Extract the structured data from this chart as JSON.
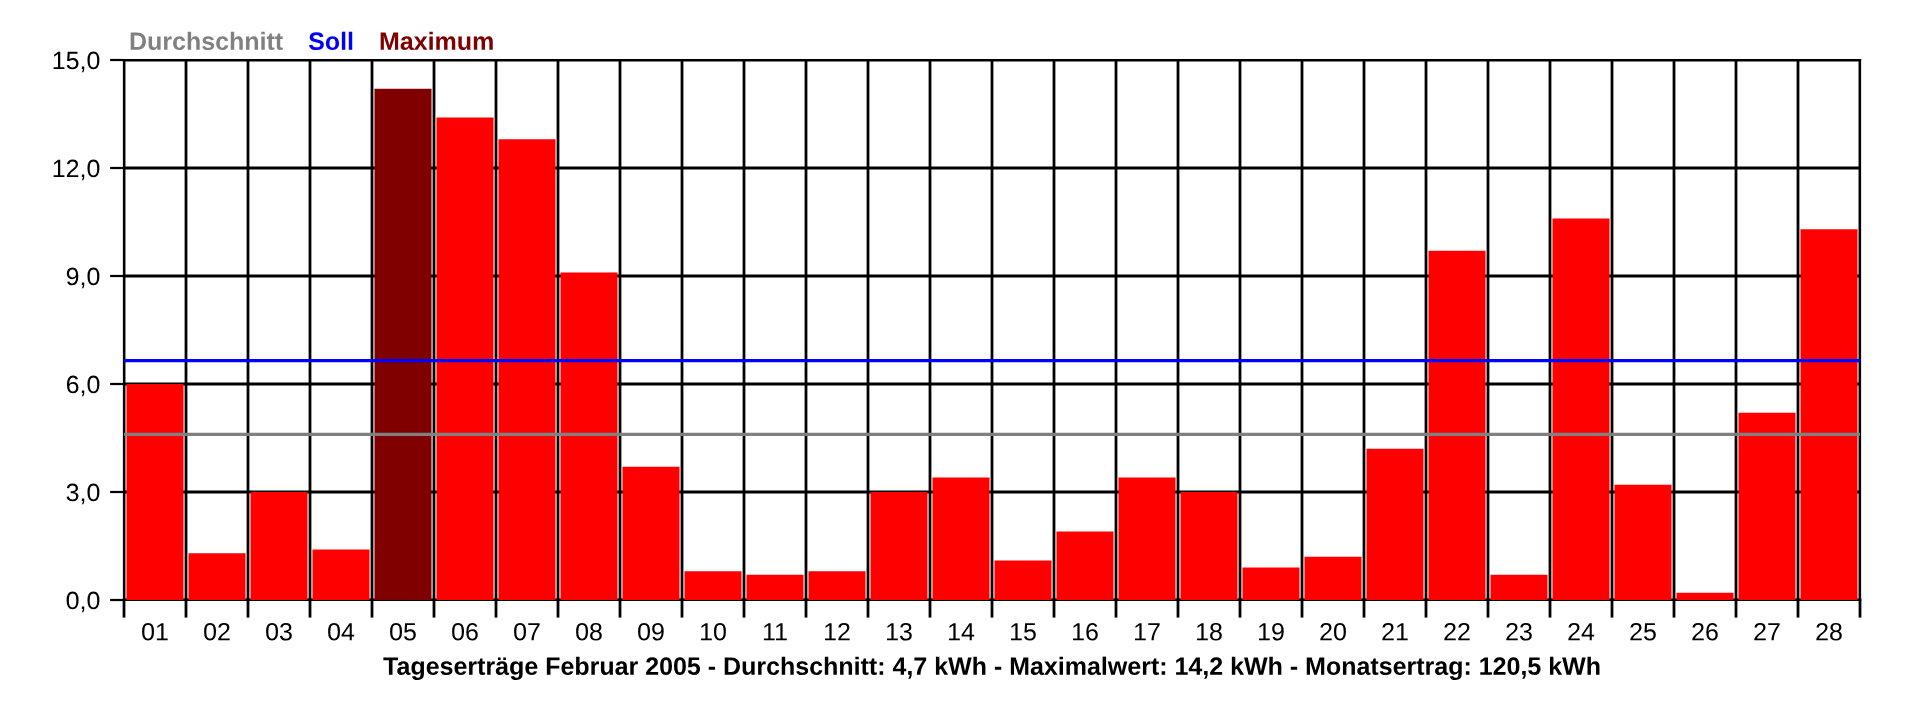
{
  "chart_data": {
    "type": "bar",
    "xlabel": "Tageserträge Februar 2005 - Durchschnitt: 4,7 kWh - Maximalwert: 14,2 kWh - Monatsertrag: 120,5 kWh",
    "categories": [
      "01",
      "02",
      "03",
      "04",
      "05",
      "06",
      "07",
      "08",
      "09",
      "10",
      "11",
      "12",
      "13",
      "14",
      "15",
      "16",
      "17",
      "18",
      "19",
      "20",
      "21",
      "22",
      "23",
      "24",
      "25",
      "26",
      "27",
      "28"
    ],
    "series": [
      {
        "color": "#ff0000",
        "values": [
          6.0,
          1.3,
          3.0,
          1.4,
          null,
          13.4,
          12.8,
          9.1,
          3.7,
          0.8,
          0.7,
          0.8,
          3.0,
          3.4,
          1.1,
          1.9,
          3.4,
          3.0,
          0.9,
          1.2,
          4.2,
          9.7,
          0.7,
          10.6,
          3.2,
          0.2,
          5.2,
          10.3
        ]
      },
      {
        "name": "Maximum",
        "color": "#800000",
        "values": [
          null,
          null,
          null,
          null,
          14.2,
          null,
          null,
          null,
          null,
          null,
          null,
          null,
          null,
          null,
          null,
          null,
          null,
          null,
          null,
          null,
          null,
          null,
          null,
          null,
          null,
          null,
          null,
          null
        ]
      }
    ],
    "ref_lines": [
      {
        "axis": "y",
        "value": 4.6,
        "label": "Durchschnitt",
        "color": "#808080"
      },
      {
        "axis": "y",
        "value": 6.65,
        "label": "Soll",
        "color": "#0000ff"
      }
    ],
    "ylim": [
      0,
      15
    ],
    "yticks": [
      {
        "value": 0,
        "label": "0,0"
      },
      {
        "value": 3,
        "label": "3,0"
      },
      {
        "value": 6,
        "label": "6,0"
      },
      {
        "value": 9,
        "label": "9,0"
      },
      {
        "value": 12,
        "label": "12,0"
      },
      {
        "value": 15,
        "label": "15,0"
      }
    ],
    "grid": true,
    "legend": "top left"
  }
}
